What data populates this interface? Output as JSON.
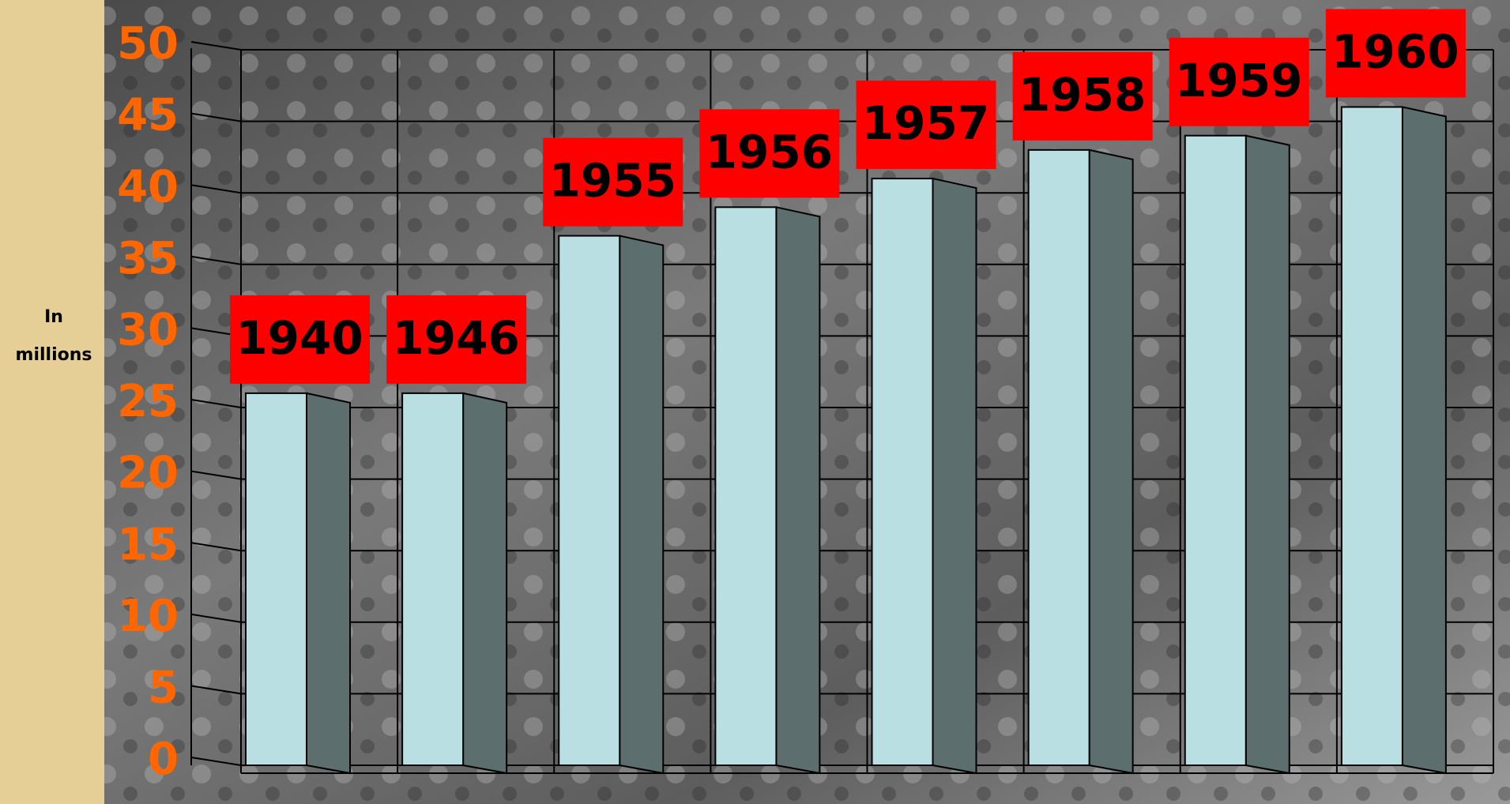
{
  "chart_data": {
    "type": "bar3d",
    "y_label": "In millions",
    "categories": [
      "1940",
      "1946",
      "1955",
      "1956",
      "1957",
      "1958",
      "1959",
      "1960"
    ],
    "values": [
      26,
      26,
      37,
      39,
      41,
      43,
      44,
      46
    ],
    "color": "#b9dfe3",
    "side_color": "#5c6e6e",
    "label_box_color": "#ff0000",
    "ylim": [
      0,
      50
    ],
    "yticks": [
      0,
      5,
      10,
      15,
      20,
      25,
      30,
      35,
      40,
      45,
      50
    ],
    "tick_color": "#ff6600",
    "grid": true
  }
}
